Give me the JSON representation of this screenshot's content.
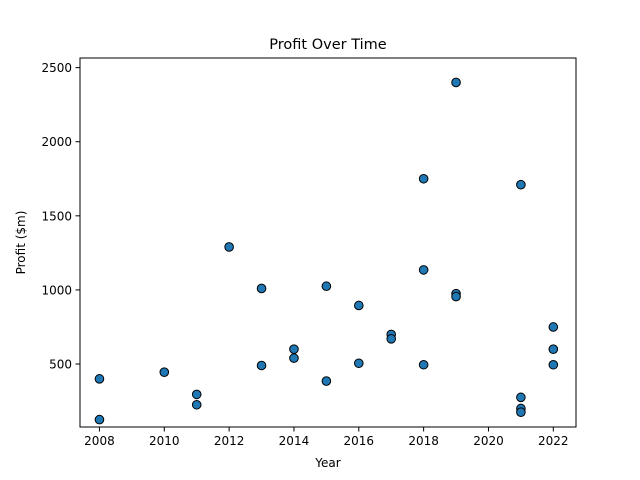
{
  "chart_data": {
    "type": "scatter",
    "title": "Profit Over Time",
    "xlabel": "Year",
    "ylabel": "Profit ($m)",
    "xlim": [
      2007.4,
      2022.7
    ],
    "ylim": [
      75,
      2565
    ],
    "x_ticks": [
      2008,
      2010,
      2012,
      2014,
      2016,
      2018,
      2020,
      2022
    ],
    "y_ticks": [
      500,
      1000,
      1500,
      2000,
      2500
    ],
    "grid": false,
    "marker_color": "#1f77b4",
    "marker_edge_color": "#000000",
    "points": [
      {
        "x": 2008,
        "y": 400
      },
      {
        "x": 2008,
        "y": 125
      },
      {
        "x": 2010,
        "y": 445
      },
      {
        "x": 2011,
        "y": 295
      },
      {
        "x": 2011,
        "y": 225
      },
      {
        "x": 2012,
        "y": 1290
      },
      {
        "x": 2013,
        "y": 1010
      },
      {
        "x": 2013,
        "y": 490
      },
      {
        "x": 2014,
        "y": 600
      },
      {
        "x": 2014,
        "y": 540
      },
      {
        "x": 2015,
        "y": 1025
      },
      {
        "x": 2015,
        "y": 385
      },
      {
        "x": 2016,
        "y": 895
      },
      {
        "x": 2016,
        "y": 505
      },
      {
        "x": 2017,
        "y": 700
      },
      {
        "x": 2017,
        "y": 670
      },
      {
        "x": 2018,
        "y": 1750
      },
      {
        "x": 2018,
        "y": 1135
      },
      {
        "x": 2018,
        "y": 495
      },
      {
        "x": 2019,
        "y": 2400
      },
      {
        "x": 2019,
        "y": 975
      },
      {
        "x": 2019,
        "y": 955
      },
      {
        "x": 2021,
        "y": 1710
      },
      {
        "x": 2021,
        "y": 275
      },
      {
        "x": 2021,
        "y": 200
      },
      {
        "x": 2021,
        "y": 175
      },
      {
        "x": 2022,
        "y": 750
      },
      {
        "x": 2022,
        "y": 600
      },
      {
        "x": 2022,
        "y": 495
      }
    ]
  }
}
